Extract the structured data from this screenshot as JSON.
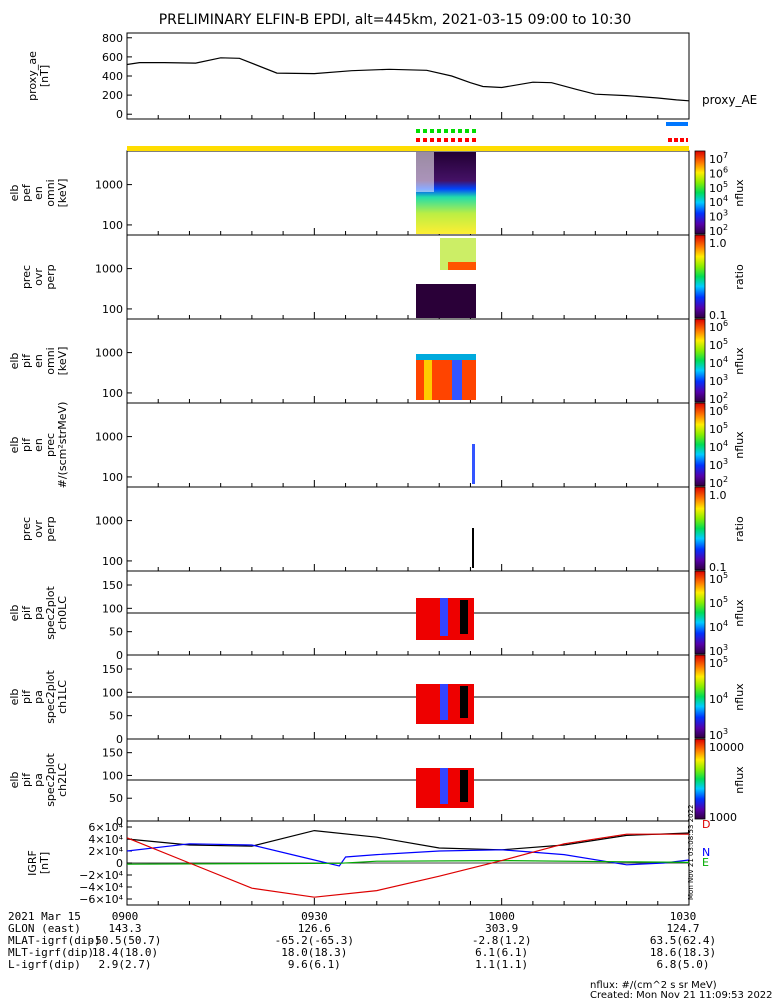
{
  "title": "PRELIMINARY ELFIN-B EPDI, alt=445km, 2021-03-15 09:00 to 10:30",
  "chart_data": [
    {
      "type": "line",
      "panel": "proxy_ae",
      "ylabel_lines": [
        "proxy_ae",
        "[nT]"
      ],
      "legend": "proxy_AE",
      "ylim": [
        -50,
        850
      ],
      "yticks": [
        "800",
        "600",
        "400",
        "200",
        "0"
      ],
      "xlim_minutes": [
        0,
        90
      ],
      "x": [
        0,
        2,
        6,
        11,
        15,
        18,
        24,
        30,
        36,
        42,
        48,
        52,
        55,
        57,
        60,
        65,
        68,
        72,
        75,
        80,
        85,
        88,
        90
      ],
      "y": [
        520,
        540,
        540,
        535,
        590,
        585,
        430,
        425,
        455,
        470,
        460,
        400,
        330,
        290,
        280,
        335,
        330,
        260,
        210,
        195,
        170,
        150,
        140
      ],
      "color": "#000000"
    },
    {
      "type": "heatmap",
      "panel": "elb_pef_en_omni",
      "ylabel_lines": [
        "elb",
        "pef",
        "en",
        "omni",
        "[keV]"
      ],
      "ytick_labels": [
        "1000",
        "100"
      ],
      "colorbar_label": "nflux",
      "colorbar_ticks": [
        "10^7",
        "10^6",
        "10^5",
        "10^4",
        "10^3",
        "10^2"
      ]
    },
    {
      "type": "heatmap",
      "panel": "prec_ovr_perp_1",
      "ylabel_lines": [
        "prec",
        "ovr",
        "perp"
      ],
      "ytick_labels": [
        "1000",
        "100"
      ],
      "colorbar_label": "ratio",
      "colorbar_ticks": [
        "1.0",
        "0.1"
      ]
    },
    {
      "type": "heatmap",
      "panel": "elb_pif_en_omni",
      "ylabel_lines": [
        "elb",
        "pif",
        "en",
        "omni",
        "[keV]"
      ],
      "ytick_labels": [
        "1000",
        "100"
      ],
      "colorbar_label": "nflux",
      "colorbar_ticks": [
        "10^6",
        "10^5",
        "10^4",
        "10^3",
        "10^2"
      ]
    },
    {
      "type": "heatmap",
      "panel": "elb_pif_en_prec",
      "ylabel_lines": [
        "elb",
        "pif",
        "en",
        "prec",
        "#/(scm²strMeV)"
      ],
      "ytick_labels": [
        "1000",
        "100"
      ],
      "colorbar_label": "nflux",
      "colorbar_ticks": [
        "10^6",
        "10^5",
        "10^4",
        "10^3",
        "10^2"
      ]
    },
    {
      "type": "heatmap",
      "panel": "prec_ovr_perp_2",
      "ylabel_lines": [
        "prec",
        "ovr",
        "perp"
      ],
      "ytick_labels": [
        "1000",
        "100"
      ],
      "colorbar_label": "ratio",
      "colorbar_ticks": [
        "1.0",
        "0.1"
      ]
    },
    {
      "type": "heatmap",
      "panel": "elb_pif_pa_ch0LC",
      "ylabel_lines": [
        "elb",
        "pif",
        "pa",
        "spec2plot",
        "ch0LC"
      ],
      "ytick_labels": [
        "150",
        "100",
        "50",
        "0"
      ],
      "ylim": [
        0,
        180
      ],
      "hline": 90,
      "colorbar_label": "nflux",
      "colorbar_ticks": [
        "10^5",
        "10^5",
        "10^4",
        "10^3"
      ]
    },
    {
      "type": "heatmap",
      "panel": "elb_pif_pa_ch1LC",
      "ylabel_lines": [
        "elb",
        "pif",
        "pa",
        "spec2plot",
        "ch1LC"
      ],
      "ytick_labels": [
        "150",
        "100",
        "50",
        "0"
      ],
      "ylim": [
        0,
        180
      ],
      "hline": 90,
      "colorbar_label": "nflux",
      "colorbar_ticks": [
        "10^5",
        "10^4",
        "10^3"
      ]
    },
    {
      "type": "heatmap",
      "panel": "elb_pif_pa_ch2LC",
      "ylabel_lines": [
        "elb",
        "pif",
        "pa",
        "spec2plot",
        "ch2LC"
      ],
      "ytick_labels": [
        "150",
        "100",
        "50",
        "0"
      ],
      "ylim": [
        0,
        180
      ],
      "hline": 90,
      "colorbar_label": "nflux",
      "colorbar_ticks": [
        "10000",
        "1000"
      ]
    },
    {
      "type": "line",
      "panel": "igrf",
      "ylabel_lines": [
        "IGRF",
        "[nT]"
      ],
      "ylim": [
        -70000,
        70000
      ],
      "yticks": [
        "6×10⁴",
        "4×10⁴",
        "2×10⁴",
        "0",
        "−2×10⁴",
        "−4×10⁴",
        "−6×10⁴"
      ],
      "xlim_minutes": [
        0,
        90
      ],
      "series": [
        {
          "name": "D",
          "color": "#000000",
          "x": [
            0,
            10,
            20,
            30,
            40,
            50,
            60,
            70,
            80,
            90
          ],
          "y": [
            40000,
            30000,
            28000,
            54000,
            43000,
            25000,
            22000,
            30000,
            46000,
            50000
          ]
        },
        {
          "name": "N",
          "color": "#0000ff",
          "x": [
            0,
            10,
            20,
            28,
            34,
            35,
            40,
            50,
            60,
            70,
            80,
            86,
            90
          ],
          "y": [
            20000,
            32000,
            30000,
            10000,
            -5000,
            10000,
            14000,
            20000,
            22000,
            14000,
            -3000,
            0,
            5000
          ]
        },
        {
          "name": "E",
          "color": "#00aa00",
          "x": [
            0,
            20,
            34,
            40,
            60,
            80,
            90
          ],
          "y": [
            -2000,
            -1000,
            -500,
            3000,
            4000,
            2000,
            1000
          ]
        },
        {
          "name": "",
          "color": "#dd0000",
          "x": [
            0,
            10,
            20,
            30,
            40,
            50,
            60,
            70,
            80,
            90
          ],
          "y": [
            42000,
            0,
            -42000,
            -57000,
            -46000,
            -22000,
            4000,
            32000,
            48000,
            48000
          ]
        }
      ]
    }
  ],
  "side_labels": {
    "d": "D",
    "n": "N",
    "e": "E",
    "vertical_stamp": "Mon Nov 21 03:08:53 2022"
  },
  "footer": {
    "rows": [
      [
        "2021 Mar 15",
        "0900",
        "0930",
        "1000",
        "1030"
      ],
      [
        "GLON (east)",
        "143.3",
        "126.6",
        "303.9",
        "124.7"
      ],
      [
        "MLAT-igrf(dip)",
        "-50.5(50.7)",
        "-65.2(-65.3)",
        "-2.8(1.2)",
        "63.5(62.4)"
      ],
      [
        "MLT-igrf(dip)",
        "18.4(18.0)",
        "18.0(18.3)",
        "6.1(6.1)",
        "18.6(18.3)"
      ],
      [
        "L-igrf(dip)",
        "2.9(2.7)",
        "9.6(6.1)",
        "1.1(1.1)",
        "6.8(5.0)"
      ]
    ],
    "nflux_note": "nflux: #/(cm^2 s sr MeV)",
    "created": "Created: Mon Nov 21 11:09:53 2022"
  },
  "colors": {
    "status_yellow": "#ffdd00",
    "status_green": "#00dd00",
    "status_red": "#ff0000",
    "status_blue": "#0077ff"
  }
}
